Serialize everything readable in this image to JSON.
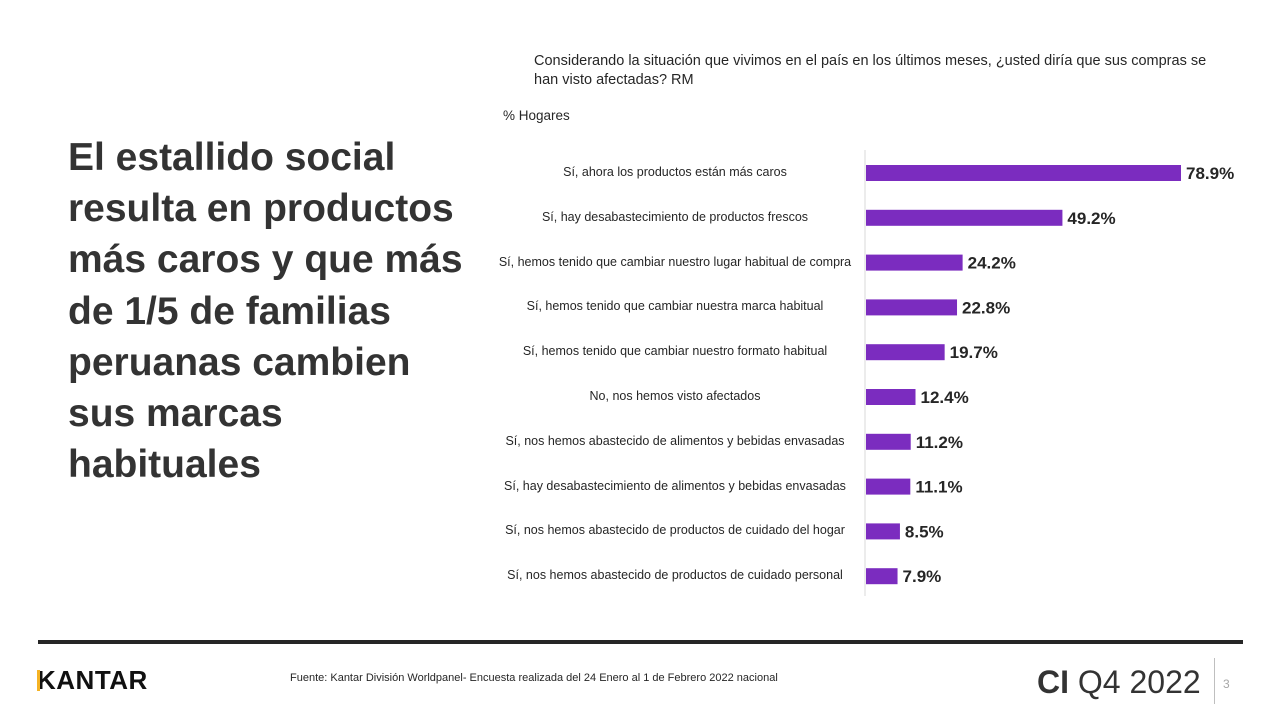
{
  "headline": "El estallido social resulta en productos más caros y que más de 1/5 de familias peruanas cambien sus marcas habituales",
  "question": "Considerando la situación que vivimos en el país en los últimos meses, ¿usted diría que sus compras se han visto afectadas? RM",
  "units_label": "% Hogares",
  "chart_data": {
    "type": "bar",
    "orientation": "horizontal",
    "title": "Considerando la situación que vivimos en el país en los últimos meses, ¿usted diría que sus compras se han visto afectadas? RM",
    "xlabel": "% Hogares",
    "ylabel": "",
    "xlim": [
      0,
      80
    ],
    "grid": false,
    "bar_color": "#7B2CBF",
    "categories": [
      "Sí, ahora los productos están más caros",
      "Sí, hay desabastecimiento de productos frescos",
      "Sí, hemos tenido que cambiar nuestro lugar habitual de compra",
      "Sí, hemos tenido que cambiar nuestra marca habitual",
      "Sí, hemos tenido que cambiar nuestro formato habitual",
      "No, nos hemos visto afectados",
      "Sí, nos hemos abastecido de alimentos y bebidas envasadas",
      "Sí, hay desabastecimiento de alimentos y bebidas envasadas",
      "Sí, nos hemos abastecido de productos de cuidado del hogar",
      "Sí, nos hemos abastecido de productos de cuidado personal"
    ],
    "values": [
      78.9,
      49.2,
      24.2,
      22.8,
      19.7,
      12.4,
      11.2,
      11.1,
      8.5,
      7.9
    ],
    "value_labels": [
      "78.9%",
      "49.2%",
      "24.2%",
      "22.8%",
      "19.7%",
      "12.4%",
      "11.2%",
      "11.1%",
      "8.5%",
      "7.9%"
    ]
  },
  "footer": {
    "logo": "KANTAR",
    "source": "Fuente: Kantar División Worldpanel- Encuesta realizada del 24 Enero al  1 de Febrero 2022 nacional",
    "ci_bold": "CI",
    "ci_period": "Q4 2022",
    "page_number": "3"
  }
}
